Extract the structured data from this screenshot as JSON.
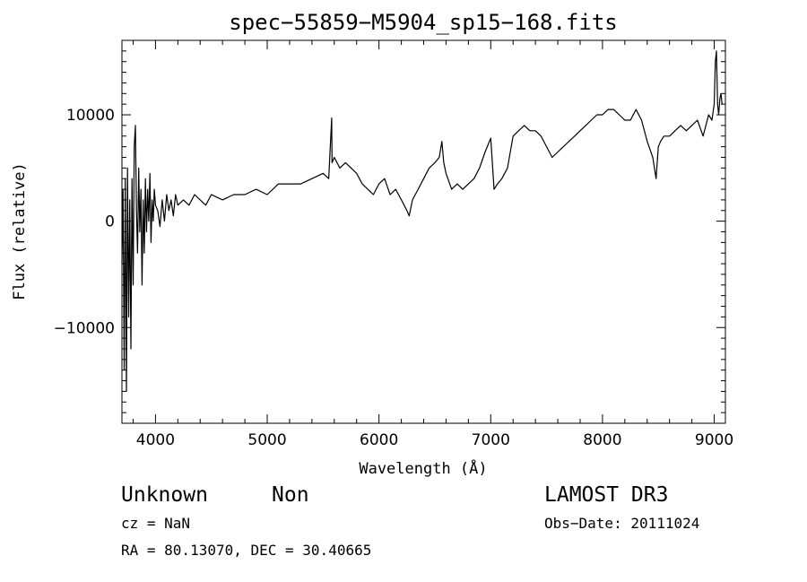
{
  "chart_data": {
    "type": "line",
    "title": "spec−55859−M5904_sp15−168.fits",
    "xlabel": "Wavelength (Å)",
    "ylabel": "Flux (relative)",
    "xlim": [
      3700,
      9100
    ],
    "ylim": [
      -19000,
      17000
    ],
    "x_ticks": [
      4000,
      5000,
      6000,
      7000,
      8000,
      9000
    ],
    "y_ticks": [
      -10000,
      0,
      10000
    ],
    "y_tick_labels": [
      "−10000",
      "0",
      "10000"
    ],
    "x_tick_labels": [
      "4000",
      "5000",
      "6000",
      "7000",
      "8000",
      "9000"
    ],
    "grid": false,
    "series": [
      {
        "color": "#000000",
        "x": [
          3700,
          3710,
          3720,
          3730,
          3740,
          3750,
          3760,
          3770,
          3780,
          3790,
          3800,
          3810,
          3820,
          3830,
          3840,
          3850,
          3860,
          3870,
          3880,
          3890,
          3900,
          3910,
          3920,
          3930,
          3940,
          3950,
          3960,
          3970,
          3980,
          3990,
          4000,
          4020,
          4040,
          4060,
          4080,
          4100,
          4120,
          4140,
          4160,
          4180,
          4200,
          4250,
          4300,
          4350,
          4400,
          4450,
          4500,
          4600,
          4700,
          4800,
          4900,
          5000,
          5100,
          5200,
          5300,
          5400,
          5500,
          5550,
          5577,
          5580,
          5600,
          5650,
          5700,
          5750,
          5800,
          5850,
          5900,
          5950,
          6000,
          6050,
          6100,
          6150,
          6200,
          6250,
          6270,
          6300,
          6350,
          6400,
          6450,
          6500,
          6540,
          6563,
          6580,
          6600,
          6650,
          6700,
          6750,
          6800,
          6850,
          6900,
          6950,
          7000,
          7030,
          7060,
          7100,
          7150,
          7200,
          7250,
          7300,
          7350,
          7400,
          7450,
          7500,
          7550,
          7600,
          7650,
          7700,
          7750,
          7800,
          7850,
          7900,
          7950,
          8000,
          8050,
          8100,
          8150,
          8200,
          8250,
          8300,
          8350,
          8400,
          8450,
          8480,
          8500,
          8520,
          8550,
          8600,
          8650,
          8700,
          8750,
          8800,
          8850,
          8900,
          8950,
          8980,
          9000,
          9010,
          9020,
          9030,
          9040,
          9050,
          9060,
          9070
        ],
        "y": [
          -4000,
          3000,
          -14000,
          4000,
          -16000,
          5000,
          -9000,
          2000,
          -12000,
          4000,
          -6000,
          7000,
          9000,
          1000,
          -3000,
          5000,
          -1000,
          3000,
          -6000,
          2000,
          -3000,
          4000,
          -1000,
          3000,
          0,
          4500,
          -2000,
          2000,
          0,
          3000,
          1500,
          1000,
          -500,
          2000,
          0,
          2500,
          1000,
          2000,
          500,
          2500,
          1500,
          2000,
          1500,
          2500,
          2000,
          1500,
          2500,
          2000,
          2500,
          2500,
          3000,
          2500,
          3500,
          3500,
          3500,
          4000,
          4500,
          4000,
          9700,
          5500,
          6000,
          5000,
          5500,
          5000,
          4500,
          3500,
          3000,
          2500,
          3500,
          4000,
          2500,
          3000,
          2000,
          1000,
          500,
          2000,
          3000,
          4000,
          5000,
          5500,
          6000,
          7500,
          5500,
          4500,
          3000,
          3500,
          3000,
          3500,
          4000,
          5000,
          6500,
          7800,
          3000,
          3500,
          4000,
          5000,
          8000,
          8500,
          9000,
          8500,
          8500,
          8000,
          7000,
          6000,
          6500,
          7000,
          7500,
          8000,
          8500,
          9000,
          9500,
          10000,
          10000,
          10500,
          10500,
          10000,
          9500,
          9500,
          10500,
          9500,
          7500,
          6000,
          4000,
          7000,
          7500,
          8000,
          8000,
          8500,
          9000,
          8500,
          9000,
          9500,
          8000,
          10000,
          9500,
          11000,
          15000,
          16000,
          11000,
          10000,
          11500,
          12000,
          11000
        ]
      }
    ],
    "texts": {
      "object_class": "Unknown",
      "subclass": "Non",
      "survey": "LAMOST DR3",
      "cz": "cz = NaN",
      "obs_date": "Obs−Date: 20111024",
      "coords": "RA =  80.13070, DEC =  30.40665"
    }
  }
}
